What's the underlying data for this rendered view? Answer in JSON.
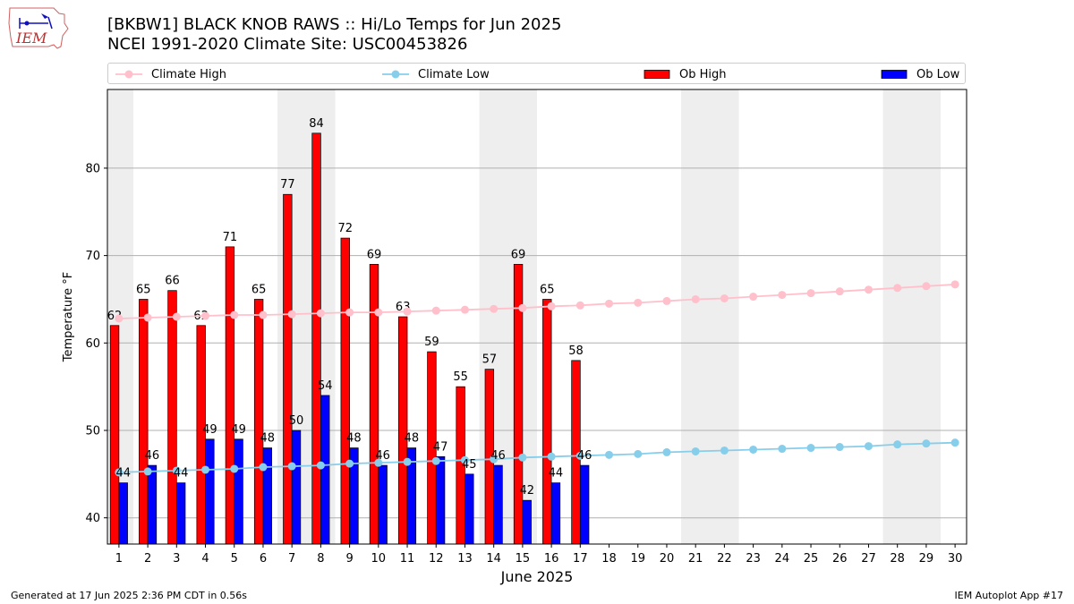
{
  "header": {
    "logo_text": "IEM",
    "title_line1": "[BKBW1] BLACK KNOB RAWS :: Hi/Lo Temps for Jun 2025",
    "title_line2": "NCEI 1991-2020 Climate Site: USC00453826"
  },
  "legend": {
    "climate_high": "Climate High",
    "climate_low": "Climate Low",
    "ob_high": "Ob High",
    "ob_low": "Ob Low"
  },
  "footer": {
    "generated": "Generated at 17 Jun 2025 2:36 PM CDT in 0.56s",
    "app": "IEM Autoplot App #17"
  },
  "colors": {
    "ob_high": "#ff0000",
    "ob_low": "#0000ff",
    "climate_high": "#ffc0cb",
    "climate_low": "#87ceeb",
    "weekend_band": "#eeeeee",
    "grid": "#b0b0b0"
  },
  "chart_data": {
    "type": "bar",
    "xlabel": "June 2025",
    "ylabel": "Temperature °F",
    "ylim": [
      37,
      89
    ],
    "yticks": [
      40,
      50,
      60,
      70,
      80
    ],
    "grid": "horizontal",
    "legend_position": "top",
    "days": [
      1,
      2,
      3,
      4,
      5,
      6,
      7,
      8,
      9,
      10,
      11,
      12,
      13,
      14,
      15,
      16,
      17,
      18,
      19,
      20,
      21,
      22,
      23,
      24,
      25,
      26,
      27,
      28,
      29,
      30
    ],
    "weekend_shading": [
      [
        1,
        1
      ],
      [
        7,
        8
      ],
      [
        14,
        15
      ],
      [
        21,
        22
      ],
      [
        28,
        29
      ]
    ],
    "series": [
      {
        "name": "Ob High",
        "kind": "bar",
        "values": [
          62,
          65,
          66,
          62,
          71,
          65,
          77,
          84,
          72,
          69,
          63,
          59,
          55,
          57,
          69,
          65,
          58
        ]
      },
      {
        "name": "Ob Low",
        "kind": "bar",
        "values": [
          44,
          46,
          44,
          49,
          49,
          48,
          50,
          54,
          48,
          46,
          48,
          47,
          45,
          46,
          42,
          44,
          46
        ]
      },
      {
        "name": "Climate High",
        "kind": "line",
        "values": [
          62.8,
          62.9,
          63.0,
          63.1,
          63.2,
          63.2,
          63.3,
          63.4,
          63.5,
          63.5,
          63.6,
          63.7,
          63.8,
          63.9,
          64.0,
          64.2,
          64.3,
          64.5,
          64.6,
          64.8,
          65.0,
          65.1,
          65.3,
          65.5,
          65.7,
          65.9,
          66.1,
          66.3,
          66.5,
          66.7
        ]
      },
      {
        "name": "Climate Low",
        "kind": "line",
        "values": [
          45.2,
          45.3,
          45.4,
          45.5,
          45.6,
          45.8,
          45.9,
          46.0,
          46.2,
          46.3,
          46.4,
          46.5,
          46.6,
          46.7,
          46.9,
          47.0,
          47.1,
          47.2,
          47.3,
          47.5,
          47.6,
          47.7,
          47.8,
          47.9,
          48.0,
          48.1,
          48.2,
          48.4,
          48.5,
          48.6
        ]
      }
    ]
  }
}
